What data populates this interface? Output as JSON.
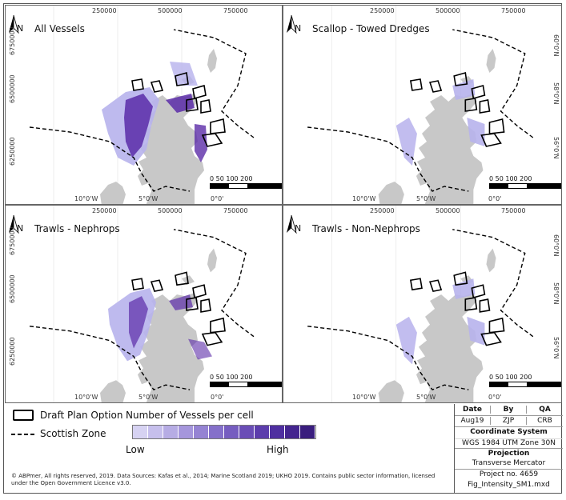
{
  "panels": [
    {
      "title": "All Vessels",
      "intensity": "high"
    },
    {
      "title": "Scallop - Towed Dredges",
      "intensity": "low"
    },
    {
      "title": "Trawls - Nephrops",
      "intensity": "medium"
    },
    {
      "title": "Trawls - Non-Nephrops",
      "intensity": "low"
    }
  ],
  "north_label": "N",
  "ticks_top": [
    "250000",
    "500000",
    "750000"
  ],
  "ticks_bottom": [
    "10°0'W",
    "5°0'W",
    "0°0'"
  ],
  "ticks_left": [
    "6750000",
    "6500000",
    "6250000"
  ],
  "ticks_right": [
    "60°0'N",
    "58°0'N",
    "56°0'N"
  ],
  "scale": {
    "labels": "0   50 100        200",
    "unit": "km"
  },
  "legend": {
    "draft_plan": "Draft Plan Option",
    "scottish_zone": "Scottish Zone",
    "ramp_title": "Number of Vessels per cell",
    "low": "Low",
    "high": "High",
    "ramp_colors": [
      "#d6d2f2",
      "#c6bfec",
      "#b6ace4",
      "#a596dc",
      "#9583d3",
      "#8570ca",
      "#765dc0",
      "#6a4db6",
      "#5c3dac",
      "#4f2fa0",
      "#44258f",
      "#3a1e7e"
    ]
  },
  "credit": "© ABPmer, All rights reserved, 2019. Data Sources: Kafas et al., 2014; Marine Scotland 2019; UKHO 2019. Contains public sector information, licensed under the Open Government Licence v3.0.",
  "title_block": {
    "date_h": "Date",
    "by_h": "By",
    "qa_h": "QA",
    "date": "Aug19",
    "by": "ZJP",
    "qa": "CRB",
    "coord_h": "Coordinate System",
    "coord": "WGS 1984 UTM Zone 30N",
    "proj_h": "Projection",
    "proj": "Transverse Mercator",
    "project_no": "Project no. 4659",
    "file": "Fig_Intensity_SM1.mxd"
  },
  "colors": {
    "land": "#c8c8c8",
    "intensity_dark": "#5b2ca8",
    "intensity_light": "#b7b2ec"
  }
}
